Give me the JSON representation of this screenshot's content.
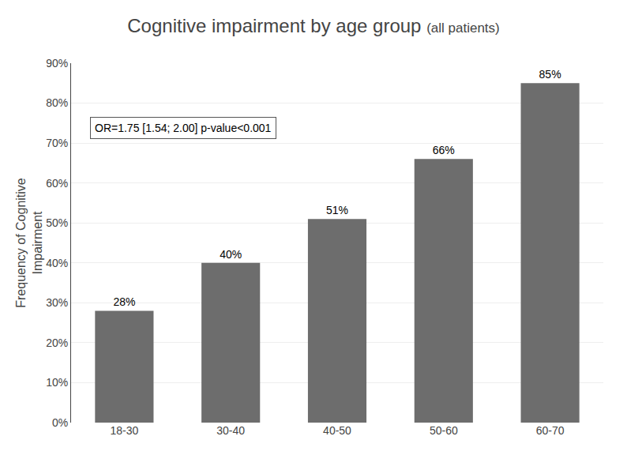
{
  "chart_data": {
    "type": "bar",
    "title": "Cognitive impairment by age group",
    "subtitle": "(all patients)",
    "categories": [
      "18-30",
      "30-40",
      "40-50",
      "50-60",
      "60-70"
    ],
    "values": [
      0.28,
      0.4,
      0.51,
      0.66,
      0.85
    ],
    "value_labels": [
      "28%",
      "40%",
      "51%",
      "66%",
      "85%"
    ],
    "data_labels": true,
    "color": "#6d6d6d",
    "ylabel": "Frequency of Cognitive\nImpairment",
    "ylim": [
      0,
      0.9
    ],
    "yticks": [
      {
        "value": 0.0,
        "label": "0%"
      },
      {
        "value": 0.1,
        "label": "10%"
      },
      {
        "value": 0.2,
        "label": "20%"
      },
      {
        "value": 0.3,
        "label": "30%"
      },
      {
        "value": 0.4,
        "label": "40%"
      },
      {
        "value": 0.5,
        "label": "50%"
      },
      {
        "value": 0.6,
        "label": "60%"
      },
      {
        "value": 0.7,
        "label": "70%"
      },
      {
        "value": 0.8,
        "label": "80%"
      },
      {
        "value": 0.9,
        "label": "90%"
      }
    ],
    "annotations": [
      "OR=1.75 [1.54; 2.00] p-value<0.001"
    ],
    "grid": true
  }
}
